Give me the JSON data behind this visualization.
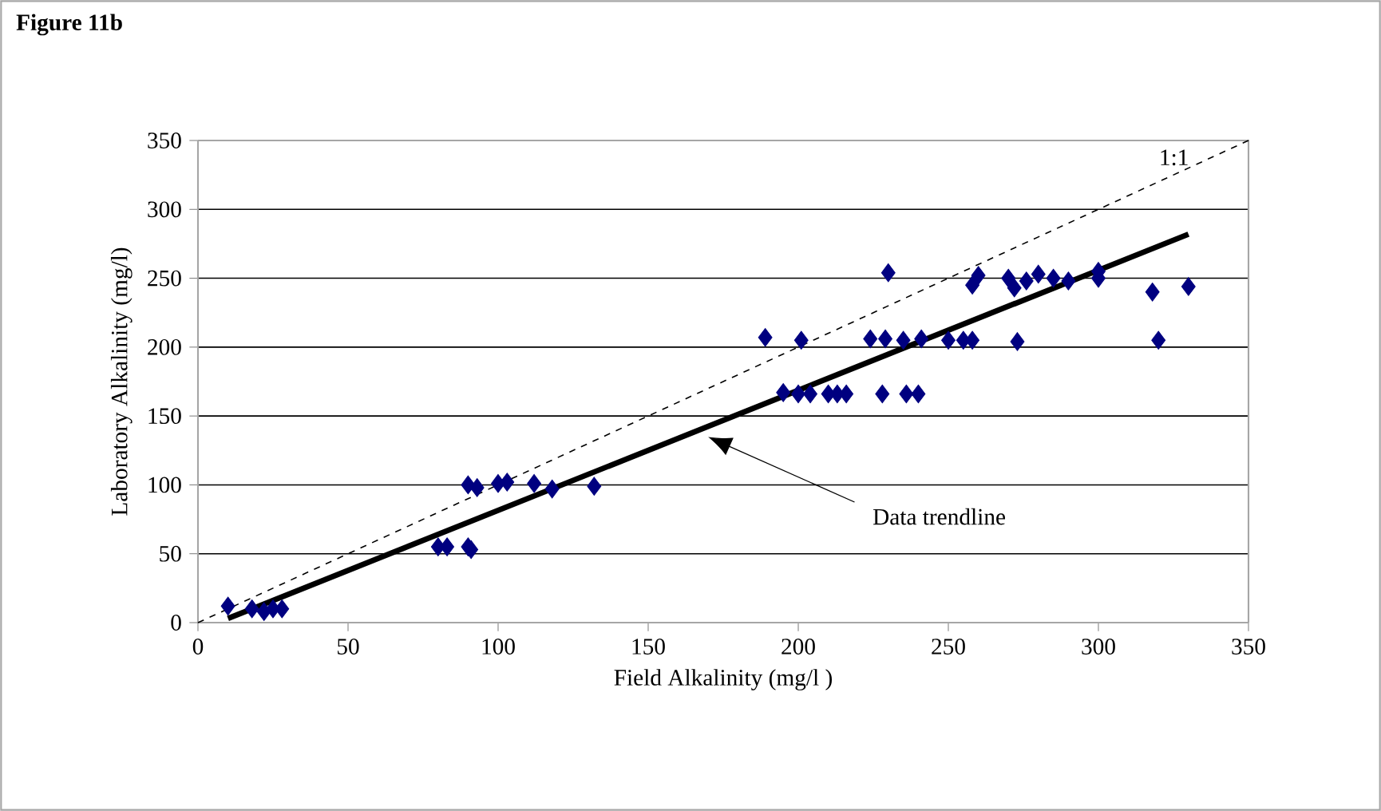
{
  "chart_data": {
    "type": "scatter",
    "title": "Figure 11b",
    "xlabel": "Field Alkalinity (mg/l )",
    "ylabel": "Laboratory Alkalinity (mg/l)",
    "xlim": [
      0,
      350
    ],
    "ylim": [
      0,
      350
    ],
    "xticks": [
      0,
      50,
      100,
      150,
      200,
      250,
      300,
      350
    ],
    "yticks": [
      0,
      50,
      100,
      150,
      200,
      250,
      300,
      350
    ],
    "grid": "y",
    "marker": "diamond",
    "series": [
      {
        "color": "#000080",
        "x": [
          10,
          18,
          22,
          25,
          28,
          80,
          83,
          90,
          91,
          90,
          93,
          100,
          103,
          112,
          118,
          132,
          189,
          201,
          224,
          229,
          235,
          241,
          250,
          255,
          258,
          273,
          320,
          195,
          200,
          204,
          210,
          213,
          216,
          228,
          236,
          240,
          230,
          258,
          260,
          270,
          272,
          276,
          280,
          285,
          290,
          300,
          300,
          318,
          330
        ],
        "values": [
          12,
          10,
          8,
          10,
          10,
          55,
          55,
          55,
          53,
          100,
          98,
          101,
          102,
          101,
          97,
          99,
          207,
          205,
          206,
          206,
          205,
          206,
          205,
          205,
          205,
          204,
          205,
          167,
          166,
          166,
          166,
          166,
          166,
          166,
          166,
          166,
          254,
          245,
          252,
          250,
          243,
          248,
          253,
          250,
          248,
          255,
          250,
          240,
          244
        ]
      },
      {
        "type": "line",
        "name": "1:1",
        "color": "#000000",
        "line_style": "dashed",
        "marker": "none",
        "x": [
          0,
          350
        ],
        "values": [
          0,
          350
        ]
      },
      {
        "type": "line",
        "color": "#000000",
        "line_style": "solid",
        "marker": "none",
        "x": [
          10,
          330
        ],
        "values": [
          3,
          282
        ]
      }
    ],
    "annotations": [
      "Data trendline"
    ]
  }
}
